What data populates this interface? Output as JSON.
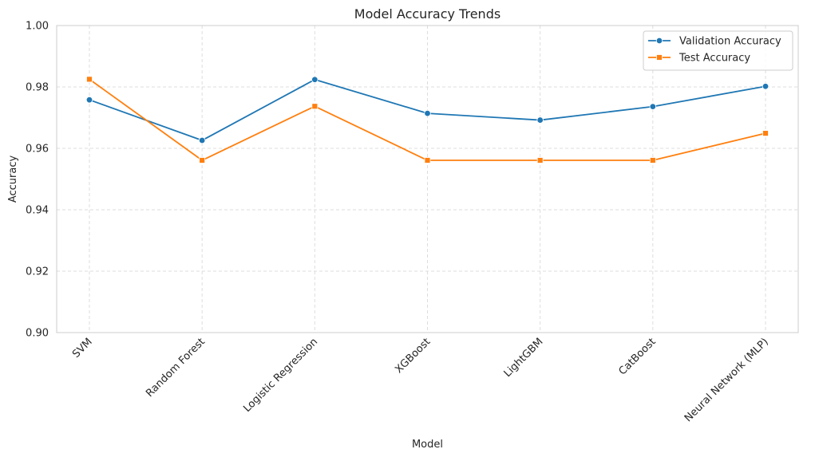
{
  "chart_data": {
    "type": "line",
    "title": "Model Accuracy Trends",
    "xlabel": "Model",
    "ylabel": "Accuracy",
    "categories": [
      "SVM",
      "Random Forest",
      "Logistic Regression",
      "XGBoost",
      "LightGBM",
      "CatBoost",
      "Neural Network (MLP)"
    ],
    "ylim": [
      0.9,
      1.0
    ],
    "yticks": [
      0.9,
      0.92,
      0.94,
      0.96,
      0.98,
      1.0
    ],
    "ytick_labels": [
      "0.90",
      "0.92",
      "0.94",
      "0.96",
      "0.98",
      "1.00"
    ],
    "grid": true,
    "legend_position": "top-right",
    "series": [
      {
        "name": "Validation Accuracy",
        "color": "#1f77b4",
        "marker": "circle",
        "values": [
          0.9758,
          0.9626,
          0.9824,
          0.9714,
          0.9692,
          0.9736,
          0.9802
        ]
      },
      {
        "name": "Test Accuracy",
        "color": "#ff7f0e",
        "marker": "square",
        "values": [
          0.9825,
          0.9561,
          0.9737,
          0.9561,
          0.9561,
          0.9561,
          0.9649
        ]
      }
    ]
  }
}
